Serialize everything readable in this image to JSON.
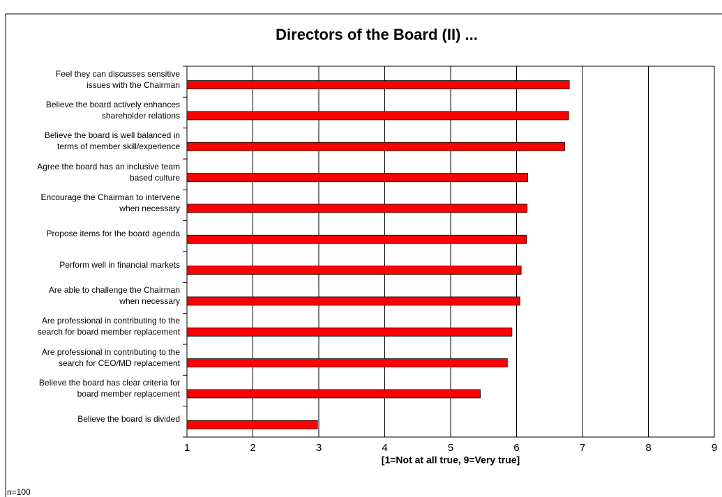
{
  "chart_data": {
    "type": "bar",
    "orientation": "horizontal",
    "title": "Directors of the Board (II) ...",
    "xlabel": "[1=Not at all true, 9=Very true]",
    "note": "n=100",
    "categories": [
      "Feel they can discusses sensitive\nissues with the Chairman",
      "Believe the board actively enhances\nshareholder relations",
      "Believe the board is well balanced in\nterms of member skill/experience",
      "Agree the board has an inclusive team\nbased culture",
      "Encourage the Chairman to intervene\nwhen necessary",
      "Propose items for the board agenda",
      "Perform well in financial markets",
      "Are able to challenge the Chairman\nwhen necessary",
      "Are professional in contributing to the\nsearch for board member replacement",
      "Are professional in contributing to the\nsearch for CEO/MD replacement",
      "Believe the board has clear criteria for\nboard member replacement",
      "Believe the board is divided"
    ],
    "values": [
      6.8,
      6.79,
      6.73,
      6.17,
      6.16,
      6.15,
      6.07,
      6.05,
      5.93,
      5.86,
      5.45,
      2.98
    ],
    "color": "#ff0000",
    "xlim": [
      1,
      9
    ],
    "xticks": [
      1,
      2,
      3,
      4,
      5,
      6,
      7,
      8,
      9
    ],
    "grid": true
  }
}
